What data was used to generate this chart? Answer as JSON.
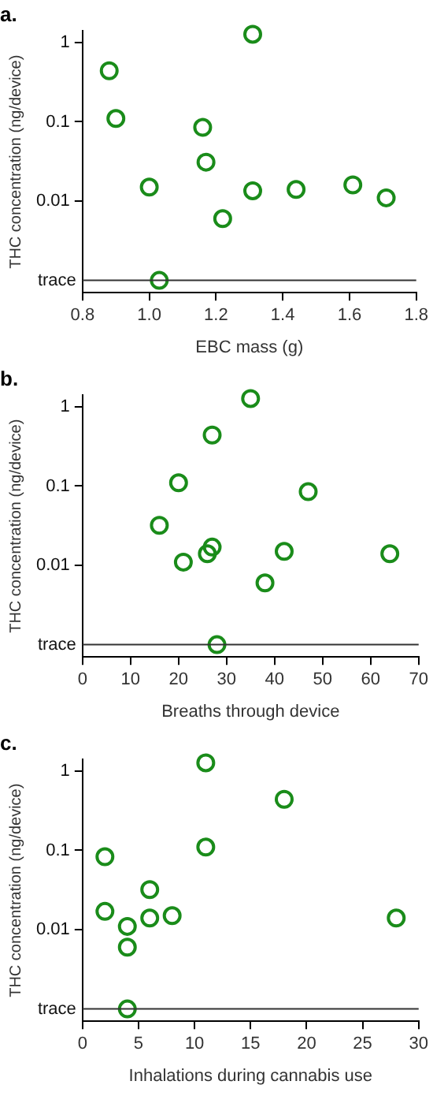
{
  "chart_data": [
    {
      "type": "scatter",
      "title": "a.",
      "xlabel": "EBC mass (g)",
      "ylabel": "THC concentration (ng/device)",
      "log": "y",
      "grid": false,
      "legend": false,
      "marker": "circle",
      "x": [
        0.88,
        0.9,
        1.16,
        1.31,
        1.17,
        1.0,
        1.31,
        1.44,
        1.61,
        1.71,
        1.22,
        1.03
      ],
      "series": [
        {
          "color": "#1a8c1a",
          "values": [
            0.44,
            0.11,
            0.085,
            1.27,
            0.031,
            0.015,
            0.0135,
            0.014,
            0.016,
            0.011,
            0.006,
            0.001
          ]
        }
      ],
      "xlim": [
        0.8,
        1.8
      ],
      "xticks": [
        {
          "value": 0.8,
          "label": "0.8"
        },
        {
          "value": 1.0,
          "label": "1.0"
        },
        {
          "value": 1.2,
          "label": "1.2"
        },
        {
          "value": 1.4,
          "label": "1.4"
        },
        {
          "value": 1.6,
          "label": "1.6"
        },
        {
          "value": 1.8,
          "label": "1.8"
        }
      ],
      "ylim": [
        0.0007,
        1.4
      ],
      "yticks": [
        0.01,
        0.1,
        1
      ],
      "ref_lines": [
        {
          "axis": "y",
          "value": 0.001,
          "label": "trace",
          "color": "#333333"
        }
      ]
    },
    {
      "type": "scatter",
      "title": "b.",
      "xlabel": "Breaths through device",
      "ylabel": "THC concentration (ng/device)",
      "log": "y",
      "grid": false,
      "legend": false,
      "marker": "circle",
      "x": [
        35,
        27,
        20,
        47,
        16,
        27,
        26,
        21,
        42,
        64,
        38,
        28
      ],
      "series": [
        {
          "color": "#1a8c1a",
          "values": [
            1.27,
            0.44,
            0.11,
            0.085,
            0.032,
            0.017,
            0.014,
            0.011,
            0.015,
            0.014,
            0.006,
            0.001
          ]
        }
      ],
      "xlim": [
        0,
        70
      ],
      "xticks": [
        0,
        10,
        20,
        30,
        40,
        50,
        60,
        70
      ],
      "ylim": [
        0.0007,
        1.4
      ],
      "yticks": [
        0.01,
        0.1,
        1
      ],
      "ref_lines": [
        {
          "axis": "y",
          "value": 0.001,
          "label": "trace",
          "color": "#333333"
        }
      ]
    },
    {
      "type": "scatter",
      "title": "c.",
      "xlabel": "Inhalations during cannabis use",
      "ylabel": "THC concentration (ng/device)",
      "log": "y",
      "grid": false,
      "legend": false,
      "marker": "circle",
      "x": [
        11,
        18,
        11,
        2,
        6,
        2,
        6,
        8,
        4,
        4,
        28,
        4
      ],
      "series": [
        {
          "color": "#1a8c1a",
          "values": [
            1.27,
            0.44,
            0.11,
            0.083,
            0.032,
            0.017,
            0.014,
            0.015,
            0.011,
            0.006,
            0.014,
            0.001
          ]
        }
      ],
      "xlim": [
        0,
        30
      ],
      "xticks": [
        0,
        5,
        10,
        15,
        20,
        25,
        30
      ],
      "ylim": [
        0.0007,
        1.4
      ],
      "yticks": [
        0.01,
        0.1,
        1
      ],
      "ref_lines": [
        {
          "axis": "y",
          "value": 0.001,
          "label": "trace",
          "color": "#333333"
        }
      ]
    }
  ]
}
